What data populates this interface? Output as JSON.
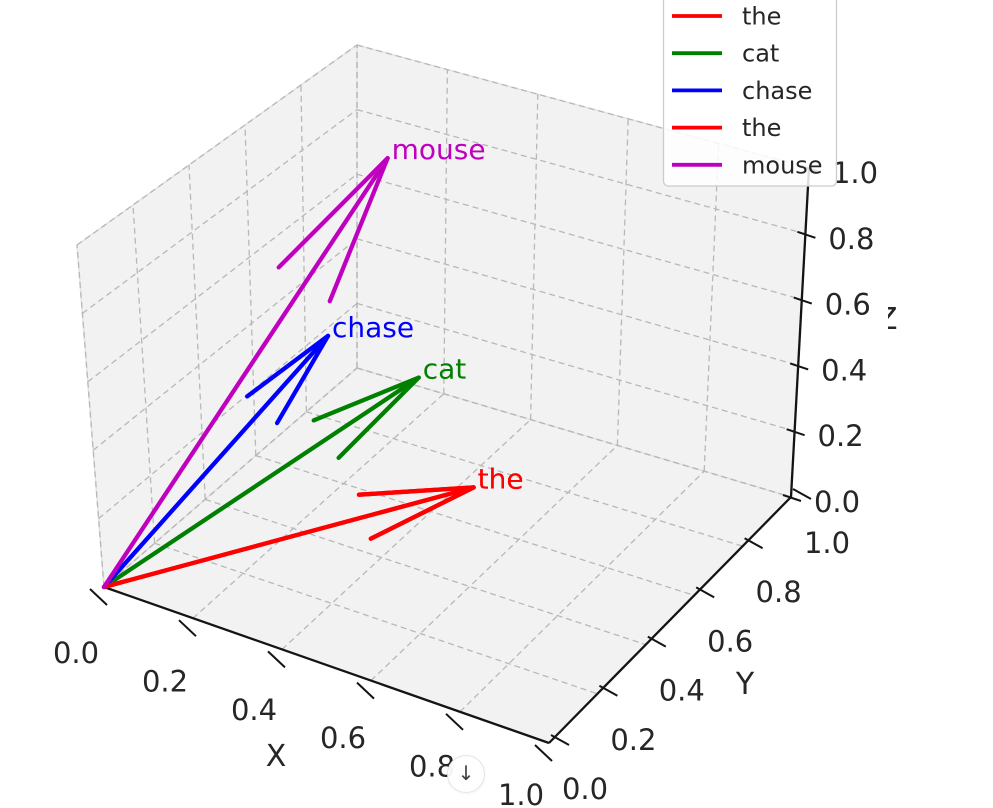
{
  "figure": {
    "background": "#ffffff",
    "kind": "matplotlib 3D quiver plot of word vectors"
  },
  "chart_data": {
    "type": "quiver3d",
    "title": "",
    "xlabel": "X",
    "ylabel": "Y",
    "zlabel": "Z",
    "xlim": [
      0.0,
      1.0
    ],
    "ylim": [
      0.0,
      1.0
    ],
    "zlim": [
      0.0,
      1.0
    ],
    "grid": true,
    "xtick_values": [
      0.0,
      0.2,
      0.4,
      0.6,
      0.8,
      1.0
    ],
    "xtick_labels": [
      "0.0",
      "0.2",
      "0.4",
      "0.6",
      "0.8",
      "1.0"
    ],
    "ytick_values": [
      0.0,
      0.2,
      0.4,
      0.6,
      0.8,
      1.0
    ],
    "ytick_labels": [
      "0.0",
      "0.2",
      "0.4",
      "0.6",
      "0.8",
      "1.0"
    ],
    "ztick_values": [
      0.0,
      0.2,
      0.4,
      0.6,
      0.8,
      1.0
    ],
    "ztick_labels": [
      "0.0",
      "0.2",
      "0.4",
      "0.6",
      "0.8",
      "1.0"
    ],
    "values_estimated_from_pixels": true,
    "vectors": [
      {
        "word": "the",
        "color": "#ff0000",
        "origin": [
          0,
          0,
          0
        ],
        "components": [
          0.44,
          0.7,
          0.02
        ]
      },
      {
        "word": "cat",
        "color": "#008000",
        "origin": [
          0,
          0,
          0
        ],
        "components": [
          0.4,
          0.55,
          0.44
        ]
      },
      {
        "word": "chase",
        "color": "#0000ff",
        "origin": [
          0,
          0,
          0
        ],
        "components": [
          0.2,
          0.55,
          0.48
        ]
      },
      {
        "word": "the",
        "color": "#ff0000",
        "origin": [
          0,
          0,
          0
        ],
        "components": [
          0.44,
          0.7,
          0.02
        ]
      },
      {
        "word": "mouse",
        "color": "#bf00bf",
        "origin": [
          0,
          0,
          0
        ],
        "components": [
          0.2,
          0.78,
          0.87
        ]
      }
    ],
    "legend": {
      "position": "upper right",
      "entries": [
        {
          "label": "the",
          "color": "#ff0000"
        },
        {
          "label": "cat",
          "color": "#008000"
        },
        {
          "label": "chase",
          "color": "#0000ff"
        },
        {
          "label": "the",
          "color": "#ff0000"
        },
        {
          "label": "mouse",
          "color": "#bf00bf"
        }
      ]
    }
  },
  "style_colors": {
    "pane_fill": "#f2f2f2",
    "pane_edge": "#e3e3e3",
    "grid_line": "#b8b8b8",
    "spine": "#141414",
    "text": "#262626",
    "legend_border": "#cccccc",
    "legend_fill": "#ffffff"
  },
  "overlay": {
    "scroll_down_symbol": "↓"
  }
}
